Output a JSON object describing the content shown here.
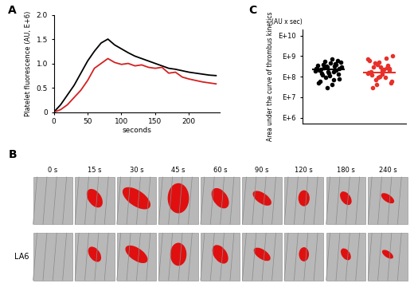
{
  "chart_data": [
    {
      "type": "line",
      "panel": "A",
      "x_label": "seconds",
      "y_label": "Platelet fluorescence (AU, E+6)",
      "x": [
        0,
        10,
        20,
        30,
        40,
        50,
        60,
        70,
        80,
        90,
        100,
        110,
        120,
        130,
        140,
        150,
        160,
        170,
        180,
        190,
        200,
        210,
        220,
        230,
        240
      ],
      "series": [
        {
          "color": "#000000",
          "values": [
            0.0,
            0.15,
            0.35,
            0.55,
            0.8,
            1.05,
            1.25,
            1.42,
            1.5,
            1.38,
            1.3,
            1.22,
            1.15,
            1.1,
            1.05,
            1.0,
            0.95,
            0.9,
            0.88,
            0.85,
            0.82,
            0.8,
            0.78,
            0.76,
            0.75
          ]
        },
        {
          "color": "#d42020",
          "values": [
            0.0,
            0.05,
            0.15,
            0.3,
            0.45,
            0.65,
            0.9,
            1.0,
            1.1,
            1.02,
            0.98,
            1.0,
            0.95,
            0.97,
            0.92,
            0.9,
            0.92,
            0.8,
            0.82,
            0.72,
            0.68,
            0.65,
            0.62,
            0.6,
            0.58
          ]
        }
      ],
      "xlim": [
        0,
        245
      ],
      "xticks": [
        0,
        50,
        100,
        150,
        200
      ],
      "ylim": [
        0,
        2.0
      ],
      "yticks": [
        0,
        0.5,
        {
          "value": 1,
          "label": "1.0"
        },
        1.5,
        {
          "value": 2,
          "label": "2.0"
        }
      ]
    },
    {
      "type": "image",
      "panel": "B",
      "time_labels": [
        "0 s",
        "15 s",
        "30 s",
        "45 s",
        "60 s",
        "90 s",
        "120 s",
        "180 s",
        "240 s"
      ],
      "row_labels": [
        null,
        "LA6"
      ]
    },
    {
      "type": "scatter",
      "panel": "C",
      "y_label": "Area under the curve of thrombus kinetics",
      "annotation": "(AU x sec)",
      "log": "y",
      "tick_labels": "y",
      "xlim": [
        0,
        2
      ],
      "ylim": [
        500000,
        20000000000
      ],
      "yticks": [
        {
          "value": 1000000,
          "label": "E+6"
        },
        {
          "value": 10000000,
          "label": "E+7"
        },
        {
          "value": 100000000,
          "label": "E+8"
        },
        {
          "value": 1000000000,
          "label": "E+9"
        },
        {
          "value": 10000000000,
          "label": "E+10"
        }
      ],
      "series": [
        {
          "color": "#000000",
          "mean": 230000000,
          "x": [
            0.3,
            0.42,
            0.55,
            0.68,
            0.36,
            0.61,
            0.48,
            0.74,
            0.27,
            0.52,
            0.39,
            0.65,
            0.58,
            0.33,
            0.7,
            0.45,
            0.62,
            0.29,
            0.5,
            0.44,
            0.72,
            0.35,
            0.57,
            0.4,
            0.66,
            0.26,
            0.53,
            0.47,
            0.71,
            0.38,
            0.6,
            0.32,
            0.49,
            0.64,
            0.76
          ],
          "values": [
            350000000,
            280000000,
            450000000,
            600000000,
            220000000,
            180000000,
            300000000,
            500000000,
            250000000,
            150000000,
            120000000,
            400000000,
            700000000,
            200000000,
            130000000,
            90000000,
            320000000,
            260000000,
            170000000,
            550000000,
            80000000,
            60000000,
            40000000,
            380000000,
            210000000,
            190000000,
            110000000,
            330000000,
            240000000,
            140000000,
            70000000,
            50000000,
            30000000,
            420000000,
            290000000
          ]
        },
        {
          "color": "#e8302a",
          "mean": 160000000,
          "x": [
            1.3,
            1.45,
            1.62,
            1.74,
            1.38,
            1.55,
            1.27,
            1.68,
            1.48,
            1.35,
            1.6,
            1.42,
            1.71,
            1.52,
            1.33,
            1.65,
            1.4,
            1.58,
            1.29,
            1.5,
            1.73,
            1.44,
            1.36,
            1.63,
            1.54,
            1.26,
            1.69,
            1.47
          ],
          "values": [
            600000000,
            400000000,
            800000000,
            1000000000,
            300000000,
            200000000,
            150000000,
            250000000,
            500000000,
            120000000,
            90000000,
            70000000,
            50000000,
            300000000,
            180000000,
            350000000,
            450000000,
            220000000,
            160000000,
            100000000,
            60000000,
            40000000,
            30000000,
            280000000,
            130000000,
            700000000,
            200000000,
            90000000
          ]
        }
      ]
    }
  ]
}
